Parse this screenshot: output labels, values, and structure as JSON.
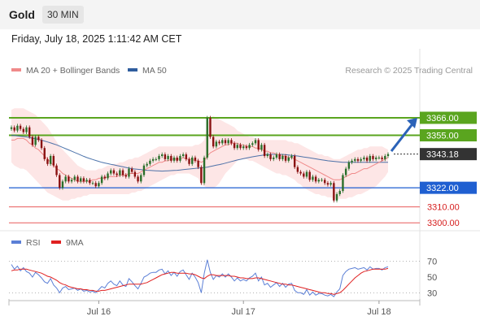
{
  "header": {
    "instrument": "Gold",
    "timeframe": "30 MIN",
    "datetime": "Friday, July 18, 2025 1:11:42 AM CET"
  },
  "legend": [
    {
      "label": "MA 20 + Bollinger Bands",
      "color": "#f08a8a"
    },
    {
      "label": "MA 50",
      "color": "#2f5d9e"
    }
  ],
  "rsi_legend": [
    {
      "label": "RSI",
      "color": "#5b7fd6"
    },
    {
      "label": "9MA",
      "color": "#e02020"
    }
  ],
  "credit": "Research © 2025 Trading Central",
  "colors": {
    "up": "#2a6e2a",
    "down": "#8a1111",
    "resistance": "#5aa51f",
    "pivot": "#1f5fd1",
    "support": "#e85a5a",
    "bb_fill": "#fde2e2",
    "arrow": "#2b62b8"
  },
  "chart_data": {
    "type": "candlestick",
    "price_axis": {
      "ylim": [
        3295,
        3390
      ]
    },
    "current_price": 3343.18,
    "levels": [
      {
        "value": 3366.0,
        "label": "3366.00",
        "type": "resistance"
      },
      {
        "value": 3355.0,
        "label": "3355.00",
        "type": "resistance"
      },
      {
        "value": 3343.18,
        "label": "3343.18",
        "type": "current"
      },
      {
        "value": 3322.0,
        "label": "3322.00",
        "type": "pivot"
      },
      {
        "value": 3310.0,
        "label": "3310.00",
        "type": "support"
      },
      {
        "value": 3300.0,
        "label": "3300.00",
        "type": "support"
      }
    ],
    "target_arrow": {
      "from_price": 3345,
      "to_price": 3366
    },
    "x_ticks": [
      {
        "label": "Jul 16",
        "bar": 29
      },
      {
        "label": "Jul 17",
        "bar": 77
      },
      {
        "label": "Jul 18",
        "bar": 122
      }
    ],
    "close": [
      3360,
      3358,
      3361,
      3359,
      3357,
      3360,
      3354,
      3349,
      3354,
      3352,
      3347,
      3340,
      3337,
      3342,
      3336,
      3330,
      3322,
      3326,
      3329,
      3326,
      3327,
      3329,
      3326,
      3328,
      3326,
      3327,
      3325,
      3325,
      3323,
      3325,
      3329,
      3328,
      3331,
      3333,
      3331,
      3330,
      3333,
      3330,
      3329,
      3334,
      3332,
      3329,
      3326,
      3330,
      3336,
      3337,
      3339,
      3340,
      3340,
      3342,
      3343,
      3340,
      3342,
      3339,
      3341,
      3339,
      3342,
      3343,
      3340,
      3337,
      3341,
      3339,
      3335,
      3325,
      3341,
      3366,
      3354,
      3348,
      3351,
      3350,
      3352,
      3350,
      3352,
      3350,
      3347,
      3349,
      3347,
      3348,
      3347,
      3349,
      3350,
      3352,
      3346,
      3349,
      3342,
      3343,
      3340,
      3341,
      3343,
      3340,
      3342,
      3339,
      3341,
      3342,
      3335,
      3332,
      3331,
      3329,
      3332,
      3327,
      3329,
      3326,
      3327,
      3327,
      3325,
      3324,
      3325,
      3314,
      3318,
      3320,
      3330,
      3334,
      3338,
      3339,
      3340,
      3339,
      3340,
      3341,
      3339,
      3342,
      3340,
      3341,
      3341,
      3340,
      3342,
      3343.18
    ],
    "ma20": [
      3352,
      3352,
      3353,
      3353,
      3353,
      3352,
      3350,
      3349,
      3347,
      3346,
      3344,
      3342,
      3340,
      3338,
      3336,
      3334,
      3333,
      3331,
      3330,
      3329,
      3328,
      3327,
      3326,
      3326,
      3326,
      3326,
      3326,
      3327,
      3327,
      3328,
      3328,
      3328,
      3329,
      3329,
      3329,
      3329,
      3330,
      3330,
      3330,
      3331,
      3331,
      3331,
      3331,
      3332,
      3333,
      3334,
      3335,
      3336,
      3337,
      3338,
      3338,
      3339,
      3339,
      3340,
      3340,
      3340,
      3340,
      3341,
      3340,
      3340,
      3340,
      3339,
      3339,
      3338,
      3339,
      3342,
      3344,
      3345,
      3346,
      3347,
      3348,
      3349,
      3349,
      3350,
      3350,
      3350,
      3349,
      3349,
      3348,
      3348,
      3348,
      3347,
      3347,
      3346,
      3345,
      3345,
      3344,
      3344,
      3343,
      3343,
      3342,
      3342,
      3341,
      3341,
      3340,
      3339,
      3338,
      3337,
      3336,
      3335,
      3334,
      3333,
      3332,
      3331,
      3330,
      3329,
      3328,
      3327,
      3327,
      3327,
      3328,
      3329,
      3330,
      3331,
      3331,
      3332,
      3333,
      3334,
      3334,
      3335,
      3336,
      3337,
      3338,
      3339,
      3340,
      3341
    ],
    "bb_upper": [
      3371,
      3372,
      3372,
      3372,
      3372,
      3371,
      3370,
      3369,
      3368,
      3366,
      3364,
      3362,
      3360,
      3357,
      3354,
      3351,
      3348,
      3346,
      3344,
      3342,
      3340,
      3338,
      3336,
      3335,
      3334,
      3333,
      3333,
      3333,
      3333,
      3334,
      3334,
      3335,
      3336,
      3336,
      3337,
      3337,
      3338,
      3338,
      3339,
      3340,
      3340,
      3341,
      3341,
      3342,
      3343,
      3344,
      3345,
      3346,
      3347,
      3348,
      3348,
      3348,
      3348,
      3348,
      3348,
      3348,
      3348,
      3348,
      3348,
      3348,
      3348,
      3349,
      3349,
      3350,
      3352,
      3362,
      3366,
      3367,
      3366,
      3365,
      3364,
      3363,
      3362,
      3361,
      3360,
      3358,
      3357,
      3356,
      3355,
      3354,
      3354,
      3353,
      3353,
      3352,
      3352,
      3352,
      3352,
      3352,
      3352,
      3352,
      3352,
      3352,
      3351,
      3351,
      3350,
      3350,
      3349,
      3348,
      3347,
      3346,
      3345,
      3344,
      3343,
      3343,
      3342,
      3342,
      3341,
      3340,
      3340,
      3340,
      3341,
      3342,
      3343,
      3344,
      3345,
      3346,
      3346,
      3347,
      3347,
      3348,
      3348,
      3348,
      3348,
      3348,
      3347,
      3346
    ],
    "bb_lower": [
      3338,
      3336,
      3335,
      3334,
      3334,
      3333,
      3331,
      3329,
      3327,
      3325,
      3323,
      3321,
      3319,
      3318,
      3317,
      3316,
      3315,
      3314,
      3314,
      3314,
      3315,
      3315,
      3316,
      3316,
      3317,
      3317,
      3318,
      3318,
      3318,
      3318,
      3318,
      3318,
      3318,
      3318,
      3318,
      3318,
      3318,
      3318,
      3318,
      3318,
      3319,
      3319,
      3320,
      3320,
      3321,
      3322,
      3323,
      3324,
      3325,
      3326,
      3327,
      3328,
      3329,
      3330,
      3330,
      3331,
      3331,
      3331,
      3331,
      3331,
      3330,
      3329,
      3328,
      3324,
      3323,
      3322,
      3322,
      3322,
      3323,
      3325,
      3328,
      3331,
      3333,
      3335,
      3337,
      3339,
      3340,
      3340,
      3340,
      3339,
      3339,
      3338,
      3337,
      3336,
      3335,
      3334,
      3333,
      3332,
      3331,
      3331,
      3330,
      3330,
      3329,
      3328,
      3327,
      3325,
      3324,
      3322,
      3321,
      3320,
      3319,
      3318,
      3318,
      3317,
      3317,
      3316,
      3316,
      3315,
      3315,
      3315,
      3315,
      3315,
      3316,
      3316,
      3317,
      3318,
      3318,
      3319,
      3320,
      3321,
      3322,
      3323,
      3325,
      3327,
      3329,
      3332
    ],
    "ma50": [
      3355,
      3354.8,
      3354.6,
      3354.4,
      3354.2,
      3354,
      3353.6,
      3353.2,
      3352.8,
      3352.4,
      3352,
      3351.4,
      3350.8,
      3350.2,
      3349.6,
      3349,
      3348.2,
      3347.4,
      3346.6,
      3345.8,
      3345,
      3344.2,
      3343.4,
      3342.6,
      3341.8,
      3341,
      3340.4,
      3339.8,
      3339.2,
      3338.6,
      3338,
      3337.6,
      3337.2,
      3336.8,
      3336.4,
      3336,
      3335.6,
      3335.2,
      3334.8,
      3334.4,
      3334,
      3333.8,
      3333.6,
      3333.4,
      3333.2,
      3333,
      3332.9,
      3332.8,
      3332.7,
      3332.6,
      3332.5,
      3332.6,
      3332.7,
      3332.8,
      3332.9,
      3333,
      3333.2,
      3333.4,
      3333.6,
      3333.8,
      3334,
      3334.2,
      3334.4,
      3334.6,
      3334.8,
      3335,
      3335.4,
      3335.8,
      3336.2,
      3336.6,
      3337,
      3337.5,
      3338,
      3338.5,
      3339,
      3339.5,
      3339.9,
      3340.3,
      3340.7,
      3341.1,
      3341.5,
      3341.8,
      3342.1,
      3342.4,
      3342.7,
      3343,
      3343,
      3343,
      3343,
      3343,
      3343,
      3342.8,
      3342.6,
      3342.4,
      3342.2,
      3342,
      3341.7,
      3341.4,
      3341.1,
      3340.8,
      3340.5,
      3340.2,
      3339.9,
      3339.6,
      3339.3,
      3339,
      3338.8,
      3338.6,
      3338.4,
      3338.2,
      3338,
      3338,
      3338,
      3338,
      3338,
      3338,
      3338,
      3338,
      3338,
      3338,
      3338,
      3338,
      3338,
      3338,
      3338,
      3338
    ],
    "rsi_axis": {
      "ticks": [
        70,
        50,
        30
      ],
      "ylim": [
        20,
        80
      ]
    },
    "rsi": [
      66,
      60,
      64,
      58,
      62,
      57,
      55,
      50,
      56,
      53,
      49,
      44,
      42,
      48,
      40,
      36,
      30,
      36,
      38,
      34,
      35,
      36,
      33,
      35,
      32,
      33,
      31,
      32,
      30,
      34,
      38,
      36,
      42,
      45,
      41,
      39,
      45,
      40,
      38,
      48,
      44,
      39,
      35,
      42,
      50,
      52,
      55,
      56,
      56,
      59,
      60,
      54,
      58,
      52,
      56,
      51,
      57,
      59,
      53,
      47,
      55,
      50,
      43,
      30,
      55,
      72,
      56,
      47,
      52,
      50,
      54,
      50,
      54,
      50,
      45,
      49,
      45,
      47,
      45,
      49,
      51,
      55,
      45,
      50,
      40,
      42,
      37,
      40,
      43,
      38,
      42,
      37,
      41,
      42,
      33,
      30,
      30,
      28,
      34,
      27,
      31,
      27,
      29,
      29,
      27,
      26,
      28,
      25,
      31,
      35,
      52,
      57,
      60,
      61,
      62,
      60,
      61,
      62,
      59,
      63,
      60,
      61,
      61,
      59,
      62,
      63
    ],
    "rsi_ma": [
      58,
      59,
      59,
      60,
      60,
      60,
      59,
      58,
      57,
      56,
      55,
      53,
      51,
      50,
      48,
      46,
      43,
      41,
      40,
      38,
      37,
      36,
      35,
      35,
      34,
      34,
      33,
      33,
      32,
      32,
      33,
      33,
      34,
      35,
      36,
      37,
      38,
      39,
      40,
      41,
      41,
      41,
      41,
      41,
      42,
      43,
      45,
      47,
      49,
      51,
      53,
      54,
      55,
      56,
      56,
      55,
      55,
      55,
      55,
      54,
      54,
      53,
      51,
      49,
      48,
      51,
      53,
      53,
      52,
      52,
      52,
      52,
      52,
      51,
      51,
      50,
      49,
      49,
      48,
      48,
      48,
      49,
      49,
      48,
      47,
      46,
      45,
      44,
      43,
      42,
      41,
      41,
      40,
      40,
      39,
      38,
      37,
      36,
      35,
      34,
      33,
      32,
      31,
      30,
      30,
      29,
      29,
      28,
      29,
      30,
      33,
      37,
      41,
      45,
      49,
      52,
      55,
      57,
      58,
      59,
      60,
      60,
      60,
      60,
      60,
      61
    ]
  }
}
